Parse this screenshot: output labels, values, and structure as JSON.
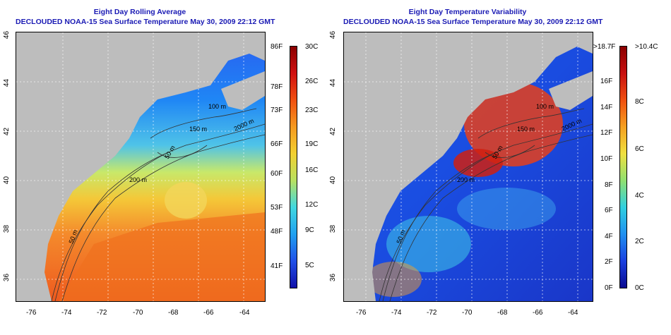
{
  "panels": [
    {
      "title_line1": "Eight Day Rolling Average",
      "title_line2": "DECLOUDED NOAA-15 Sea Surface Temperature May 30, 2009 22:12 GMT",
      "contours": [
        "50 m",
        "200 m",
        "50 m",
        "150 m",
        "2000 m",
        "100 m"
      ],
      "colorbar_left": [
        "86F",
        "78F",
        "73F",
        "66F",
        "60F",
        "53F",
        "48F",
        "41F"
      ],
      "colorbar_right": [
        "30C",
        "26C",
        "23C",
        "19C",
        "16C",
        "12C",
        "9C",
        "5C"
      ]
    },
    {
      "title_line1": "Eight Day Temperature Variability",
      "title_line2": "DECLOUDED NOAA-15 Sea Surface Temperature May 30, 2009 22:12 GMT",
      "contours": [
        "50 m",
        "200 m",
        "50 m",
        "150 m",
        "2000 m",
        "100 m"
      ],
      "colorbar_left": [
        ">18.7F",
        "16F",
        "14F",
        "12F",
        "10F",
        "8F",
        "6F",
        "4F",
        "2F",
        "0F"
      ],
      "colorbar_right": [
        ">10.4C",
        "8C",
        "6C",
        "4C",
        "2C",
        "0C"
      ]
    }
  ],
  "axes": {
    "lon_ticks": [
      "-76",
      "-74",
      "-72",
      "-70",
      "-68",
      "-66",
      "-64"
    ],
    "lat_ticks": [
      "46",
      "44",
      "42",
      "40",
      "38",
      "36"
    ]
  },
  "colors": {
    "title": "#1a1ab4",
    "land": "#bdbdbd"
  }
}
